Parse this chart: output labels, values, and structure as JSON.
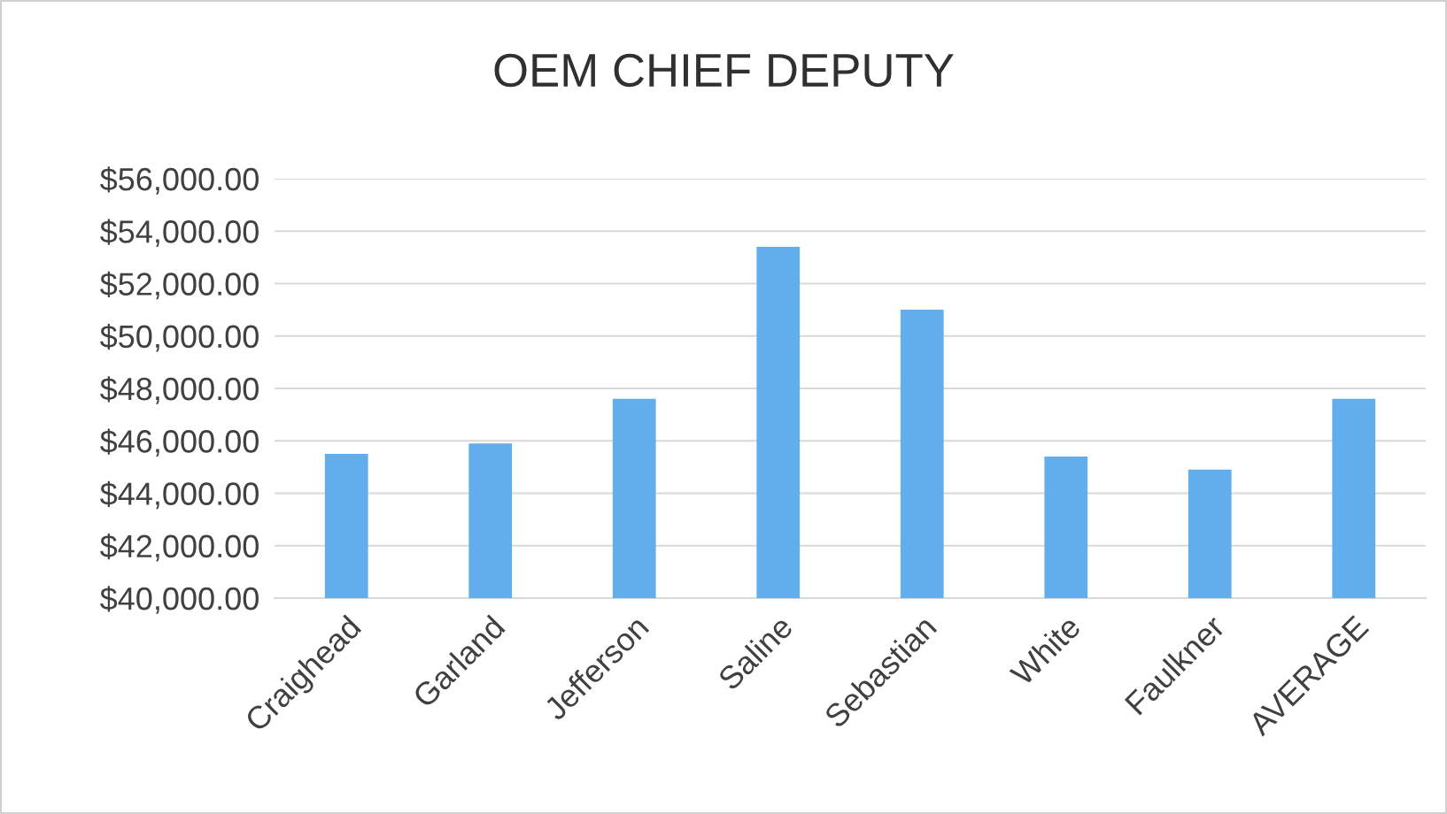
{
  "chart_data": {
    "type": "bar",
    "title": "OEM CHIEF DEPUTY",
    "categories": [
      "Craighead",
      "Garland",
      "Jefferson",
      "Saline",
      "Sebastian",
      "White",
      "Faulkner",
      "AVERAGE"
    ],
    "values": [
      45500,
      45900,
      47600,
      53400,
      51000,
      45400,
      44900,
      47600
    ],
    "color": "#62adeb",
    "ylim": [
      40000,
      56000
    ],
    "yticks": [
      {
        "value": 40000,
        "label": "$40,000.00"
      },
      {
        "value": 42000,
        "label": "$42,000.00"
      },
      {
        "value": 44000,
        "label": "$44,000.00"
      },
      {
        "value": 46000,
        "label": "$46,000.00"
      },
      {
        "value": 48000,
        "label": "$48,000.00"
      },
      {
        "value": 50000,
        "label": "$50,000.00"
      },
      {
        "value": 52000,
        "label": "$52,000.00"
      },
      {
        "value": 54000,
        "label": "$54,000.00"
      },
      {
        "value": 56000,
        "label": "$56,000.00"
      }
    ],
    "grid": "y"
  }
}
